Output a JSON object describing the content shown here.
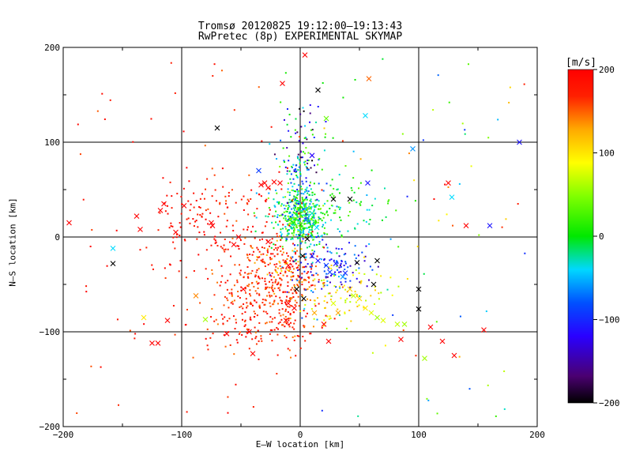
{
  "titles": {
    "line1": "Tromsø 20120825 19:12:00–19:13:43",
    "line2": "RwPretec (8p) EXPERIMENTAL SKYMAP"
  },
  "chart_data": {
    "type": "scatter",
    "xlabel": "E–W location [km]",
    "ylabel": "N–S location [km]",
    "xlim": [
      -200,
      200
    ],
    "ylim": [
      -200,
      200
    ],
    "xticks": [
      "−200",
      "−100",
      "0",
      "100",
      "200"
    ],
    "yticks": [
      "−200",
      "−100",
      "0",
      "100",
      "200"
    ],
    "grid": true,
    "colorbar": {
      "unit": "[m/s]",
      "range": [
        -200,
        200
      ],
      "ticks": [
        "200",
        "100",
        "0",
        "−100",
        "−200"
      ],
      "colormap": "rainbow: black-purple-blue-cyan-green-yellow-orange-red",
      "placement": "right"
    },
    "markers": {
      "cross": "large-x (strong echoes)",
      "dot": "small dot"
    },
    "crosses": [
      [
        -195,
        15,
        200
      ],
      [
        -158,
        -12,
        -40
      ],
      [
        -158,
        -28,
        -200
      ],
      [
        -138,
        22,
        200
      ],
      [
        -135,
        8,
        200
      ],
      [
        -132,
        -85,
        100
      ],
      [
        -120,
        -112,
        200
      ],
      [
        -112,
        -88,
        200
      ],
      [
        -115,
        35,
        200
      ],
      [
        -118,
        28,
        200
      ],
      [
        -105,
        5,
        200
      ],
      [
        -98,
        33,
        200
      ],
      [
        -88,
        -62,
        140
      ],
      [
        -80,
        -87,
        60
      ],
      [
        -75,
        15,
        200
      ],
      [
        -74,
        12,
        200
      ],
      [
        -70,
        115,
        -200
      ],
      [
        -62,
        -102,
        200
      ],
      [
        -56,
        -8,
        200
      ],
      [
        -52,
        0,
        200
      ],
      [
        -48,
        -55,
        200
      ],
      [
        -43,
        -100,
        200
      ],
      [
        -40,
        -123,
        200
      ],
      [
        -35,
        70,
        -90
      ],
      [
        -33,
        55,
        200
      ],
      [
        -30,
        57,
        200
      ],
      [
        -27,
        -5,
        200
      ],
      [
        -17,
        57,
        200
      ],
      [
        -12,
        -88,
        200
      ],
      [
        -10,
        -70,
        200
      ],
      [
        -15,
        162,
        200
      ],
      [
        2,
        -20,
        -200
      ],
      [
        3,
        -65,
        -200
      ],
      [
        4,
        192,
        200
      ],
      [
        10,
        86,
        -120
      ],
      [
        12,
        -80,
        130
      ],
      [
        15,
        155,
        -200
      ],
      [
        20,
        -92,
        200
      ],
      [
        22,
        125,
        40
      ],
      [
        24,
        -110,
        200
      ],
      [
        28,
        -70,
        80
      ],
      [
        32,
        -80,
        130
      ],
      [
        38,
        -38,
        -100
      ],
      [
        42,
        -55,
        110
      ],
      [
        45,
        -62,
        70
      ],
      [
        50,
        -65,
        110
      ],
      [
        55,
        -75,
        100
      ],
      [
        55,
        128,
        -40
      ],
      [
        57,
        57,
        -110
      ],
      [
        58,
        167,
        150
      ],
      [
        60,
        -80,
        80
      ],
      [
        65,
        -85,
        60
      ],
      [
        70,
        -88,
        80
      ],
      [
        82,
        -92,
        70
      ],
      [
        85,
        -108,
        200
      ],
      [
        88,
        -92,
        60
      ],
      [
        95,
        93,
        -60
      ],
      [
        100,
        -55,
        -200
      ],
      [
        100,
        -76,
        -200
      ],
      [
        105,
        -128,
        60
      ],
      [
        110,
        -95,
        200
      ],
      [
        120,
        -110,
        200
      ],
      [
        125,
        57,
        200
      ],
      [
        128,
        42,
        -40
      ],
      [
        130,
        -125,
        200
      ],
      [
        140,
        12,
        200
      ],
      [
        155,
        -98,
        200
      ],
      [
        160,
        12,
        -110
      ],
      [
        185,
        100,
        -110
      ],
      [
        10,
        -20,
        -110
      ],
      [
        15,
        -25,
        -110
      ],
      [
        22,
        -30,
        -90
      ],
      [
        25,
        -37,
        -90
      ],
      [
        30,
        -28,
        -110
      ],
      [
        36,
        -42,
        -60
      ],
      [
        6,
        -2,
        -200
      ],
      [
        -3,
        -55,
        -200
      ],
      [
        48,
        -27,
        -200
      ],
      [
        65,
        -25,
        -200
      ],
      [
        62,
        -50,
        -200
      ],
      [
        5,
        18,
        -70
      ],
      [
        10,
        25,
        -30
      ],
      [
        14,
        10,
        -40
      ],
      [
        -22,
        58,
        200
      ],
      [
        -27,
        52,
        200
      ],
      [
        -10,
        -30,
        200
      ],
      [
        42,
        40,
        -200
      ],
      [
        28,
        40,
        -200
      ],
      [
        -125,
        -112,
        200
      ],
      [
        -5,
        -75,
        200
      ]
    ],
    "clusters": [
      {
        "cx": 0,
        "cy": 20,
        "sx": 10,
        "sy": 15,
        "n": 420,
        "vmin": -70,
        "vmax": 60
      },
      {
        "cx": -2,
        "cy": 55,
        "sx": 7,
        "sy": 35,
        "n": 100,
        "vmin": -140,
        "vmax": 60
      },
      {
        "cx": 2,
        "cy": 95,
        "sx": 12,
        "sy": 30,
        "n": 70,
        "vmin": -200,
        "vmax": 40
      },
      {
        "cx": -35,
        "cy": -55,
        "sx": 22,
        "sy": 26,
        "n": 260,
        "vmin": 140,
        "vmax": 200
      },
      {
        "cx": -8,
        "cy": -58,
        "sx": 10,
        "sy": 28,
        "n": 120,
        "vmin": 120,
        "vmax": 200
      },
      {
        "cx": -92,
        "cy": 15,
        "sx": 18,
        "sy": 22,
        "n": 75,
        "vmin": 170,
        "vmax": 200
      },
      {
        "cx": -40,
        "cy": 0,
        "sx": 22,
        "sy": 28,
        "n": 80,
        "vmin": 170,
        "vmax": 200
      },
      {
        "cx": -30,
        "cy": -95,
        "sx": 30,
        "sy": 12,
        "n": 60,
        "vmin": 170,
        "vmax": 200
      },
      {
        "cx": 25,
        "cy": -30,
        "sx": 18,
        "sy": 14,
        "n": 120,
        "vmin": -160,
        "vmax": -50
      },
      {
        "cx": 48,
        "cy": -55,
        "sx": 14,
        "sy": 14,
        "n": 45,
        "vmin": 60,
        "vmax": 120
      },
      {
        "cx": 28,
        "cy": 30,
        "sx": 28,
        "sy": 22,
        "n": 110,
        "vmin": -60,
        "vmax": 40
      },
      {
        "cx": 22,
        "cy": -72,
        "sx": 12,
        "sy": 14,
        "n": 40,
        "vmin": 60,
        "vmax": 150
      },
      {
        "cx": -20,
        "cy": -28,
        "sx": 14,
        "sy": 14,
        "n": 60,
        "vmin": 100,
        "vmax": 200
      },
      {
        "cx": -60,
        "cy": 40,
        "sx": 15,
        "sy": 18,
        "n": 30,
        "vmin": 150,
        "vmax": 200
      }
    ]
  }
}
